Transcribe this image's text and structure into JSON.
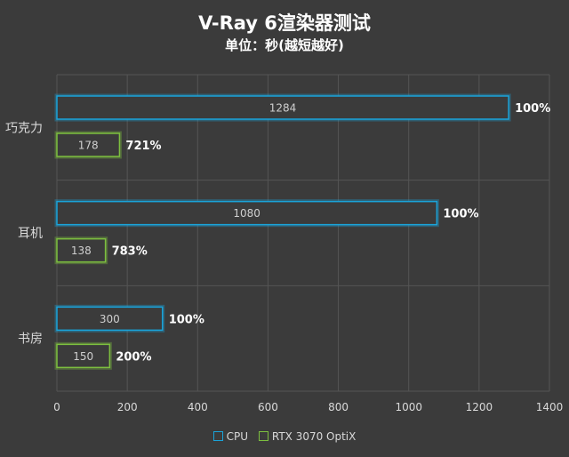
{
  "chart_data": {
    "type": "bar",
    "orientation": "horizontal",
    "title": "V-Ray 6渲染器测试",
    "subtitle": "单位：秒(越短越好)",
    "categories": [
      "巧克力",
      "耳机",
      "书房"
    ],
    "series": [
      {
        "name": "CPU",
        "values": [
          1284,
          1080,
          300
        ],
        "labels": [
          "100%",
          "100%",
          "100%"
        ],
        "color": "#1aa3d9"
      },
      {
        "name": "RTX 3070 OptiX",
        "values": [
          178,
          138,
          150
        ],
        "labels": [
          "721%",
          "783%",
          "200%"
        ],
        "color": "#7dbf3f"
      }
    ],
    "xlim": [
      0,
      1400
    ],
    "xticks": [
      0,
      200,
      400,
      600,
      800,
      1000,
      1200,
      1400
    ],
    "grid": true,
    "legend_position": "bottom",
    "bar_fill": "#3b3b3b"
  }
}
